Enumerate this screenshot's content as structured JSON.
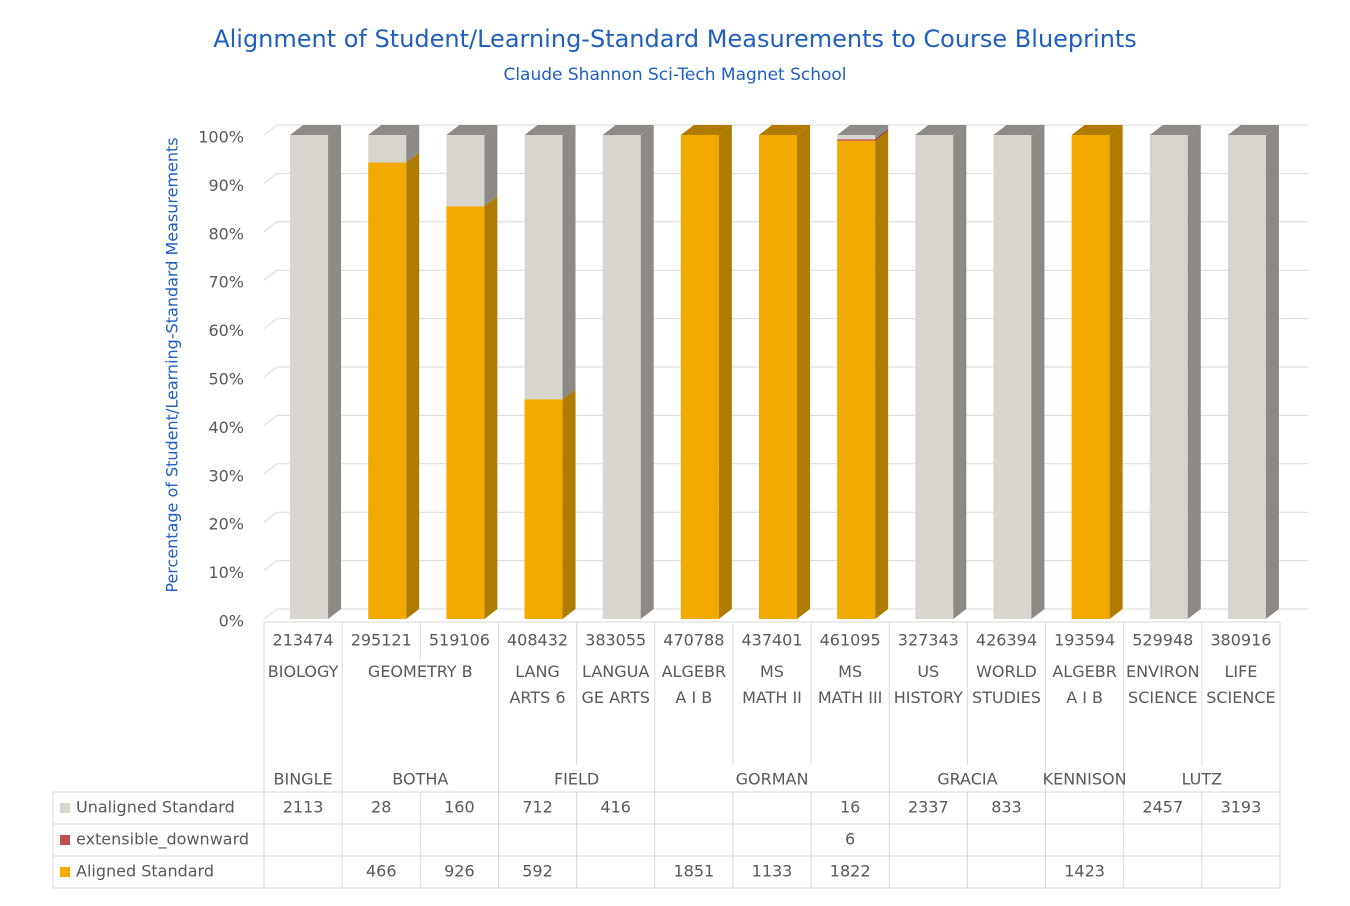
{
  "chart_data": {
    "type": "stacked-percent-column-3d",
    "title": "Alignment of Student/Learning-Standard Measurements to Course Blueprints",
    "subtitle": "Claude Shannon Sci-Tech Magnet School",
    "y_label": "Percentage of Student/Learning-Standard Measurements",
    "ylim": [
      0,
      100
    ],
    "yticks": [
      {
        "value": 0,
        "label": "0%"
      },
      {
        "value": 10,
        "label": "10%"
      },
      {
        "value": 20,
        "label": "20%"
      },
      {
        "value": 30,
        "label": "30%"
      },
      {
        "value": 40,
        "label": "40%"
      },
      {
        "value": 50,
        "label": "50%"
      },
      {
        "value": 60,
        "label": "60%"
      },
      {
        "value": 70,
        "label": "70%"
      },
      {
        "value": 80,
        "label": "80%"
      },
      {
        "value": 90,
        "label": "90%"
      },
      {
        "value": 100,
        "label": "100%"
      }
    ],
    "grid": true,
    "groups": [
      {
        "name": "BINGLE",
        "courses": [
          {
            "name": "BIOLOGY",
            "sections": [
              "213474"
            ]
          }
        ]
      },
      {
        "name": "BOTHA",
        "courses": [
          {
            "name": "GEOMETRY B",
            "sections": [
              "295121",
              "519106"
            ]
          }
        ]
      },
      {
        "name": "FIELD",
        "courses": [
          {
            "name": "LANG ARTS 6",
            "sections": [
              "408432"
            ]
          },
          {
            "name": "LANGUAGE ARTS",
            "sections": [
              "383055"
            ]
          }
        ]
      },
      {
        "name": "GORMAN",
        "courses": [
          {
            "name": "ALGEBRA I B",
            "sections": [
              "470788"
            ]
          },
          {
            "name": "MS MATH II",
            "sections": [
              "437401"
            ]
          },
          {
            "name": "MS MATH III",
            "sections": [
              "461095"
            ]
          }
        ]
      },
      {
        "name": "GRACIA",
        "courses": [
          {
            "name": "US HISTORY",
            "sections": [
              "327343"
            ]
          },
          {
            "name": "WORLD STUDIES",
            "sections": [
              "426394"
            ]
          }
        ]
      },
      {
        "name": "KENNISON",
        "courses": [
          {
            "name": "ALGEBRA I B",
            "sections": [
              "193594"
            ]
          }
        ]
      },
      {
        "name": "LUTZ",
        "courses": [
          {
            "name": "ENVIRON SCIENCE",
            "sections": [
              "529948"
            ]
          },
          {
            "name": "LIFE SCIENCE",
            "sections": [
              "380916"
            ]
          }
        ]
      }
    ],
    "series": [
      {
        "name": "Unaligned Standard",
        "color": "#d8d4ce",
        "side": "#8d8984",
        "values": [
          2113,
          28,
          160,
          712,
          416,
          null,
          null,
          16,
          2337,
          833,
          null,
          2457,
          3193
        ]
      },
      {
        "name": "extensible_downward",
        "color": "#c0504d",
        "side": "#8e3532",
        "values": [
          null,
          null,
          null,
          null,
          null,
          null,
          null,
          6,
          null,
          null,
          null,
          null,
          null
        ]
      },
      {
        "name": "Aligned Standard",
        "color": "#f2a900",
        "side": "#b07c00",
        "values": [
          null,
          466,
          926,
          592,
          null,
          1851,
          1133,
          1822,
          null,
          null,
          1423,
          null,
          null
        ]
      }
    ]
  }
}
